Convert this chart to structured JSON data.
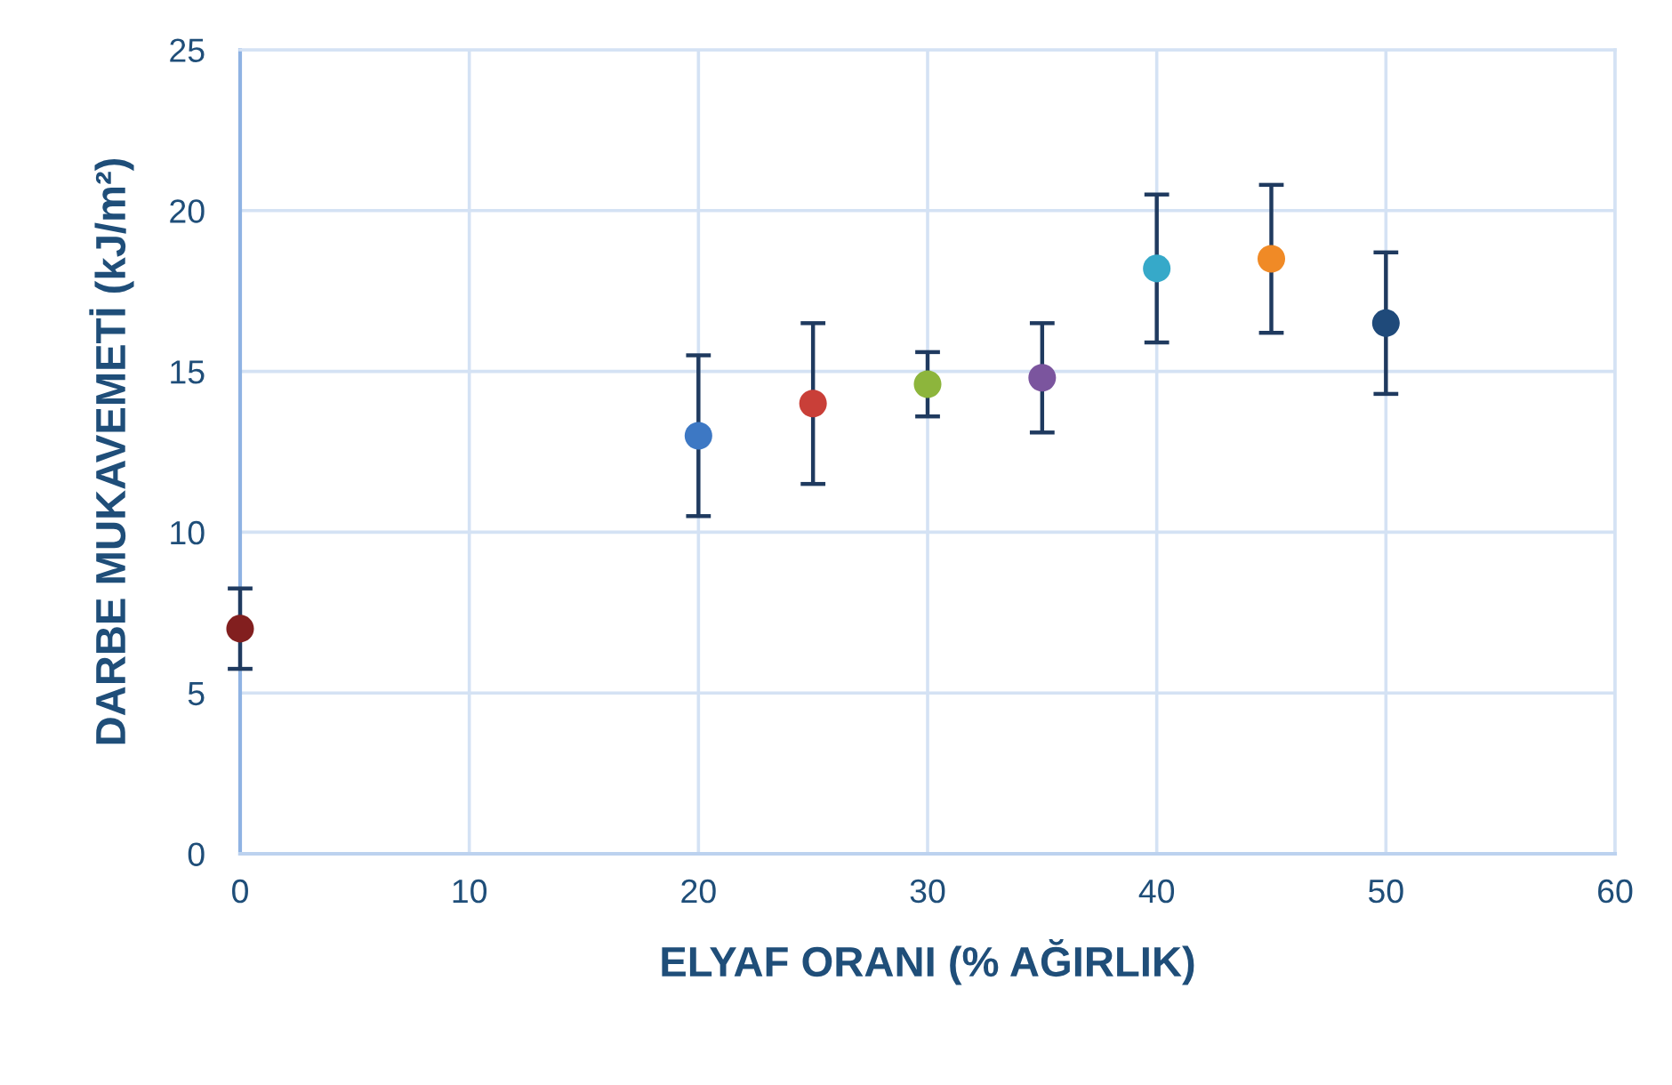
{
  "chart_data": {
    "type": "scatter",
    "xlabel": "ELYAF ORANI (% AĞIRLIK)",
    "ylabel": "DARBE MUKAVEMETİ (kJ/m²)",
    "x": [
      0,
      20,
      25,
      30,
      35,
      40,
      45,
      50
    ],
    "values": [
      7.0,
      13.0,
      14.0,
      14.6,
      14.8,
      18.2,
      18.5,
      16.5
    ],
    "errors": [
      1.25,
      2.5,
      2.5,
      1.0,
      1.7,
      2.3,
      2.3,
      2.2
    ],
    "colors": [
      "#821f1f",
      "#3d78c4",
      "#c93f38",
      "#8db53c",
      "#7b559e",
      "#36a9c9",
      "#f08a26",
      "#1f4a7a"
    ],
    "xlim": [
      0,
      60
    ],
    "ylim": [
      0,
      25
    ],
    "xticks": [
      0,
      10,
      20,
      30,
      40,
      50,
      60
    ],
    "yticks": [
      0,
      5,
      10,
      15,
      20,
      25
    ],
    "grid": true,
    "marker": "circle"
  }
}
